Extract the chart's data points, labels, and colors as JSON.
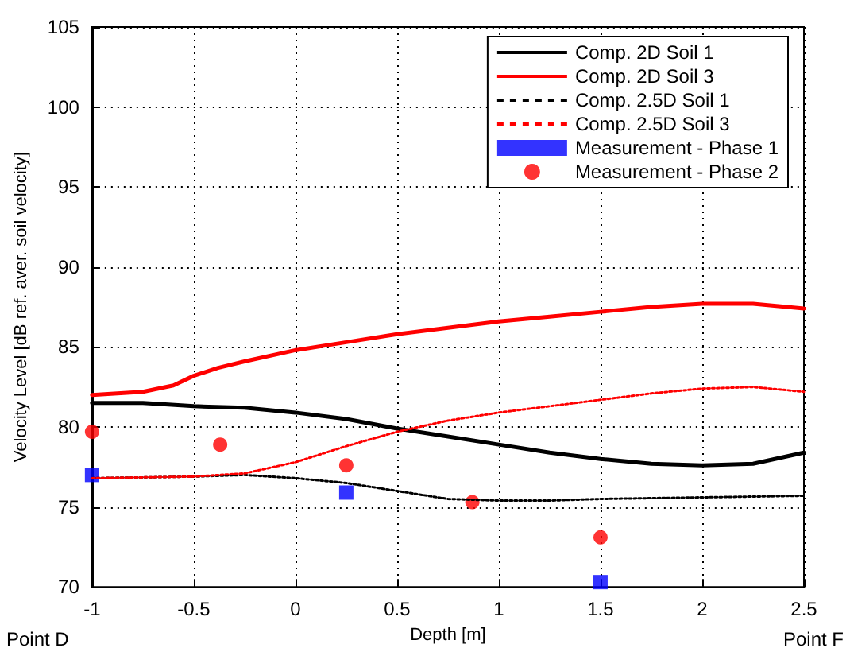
{
  "chart_data": {
    "type": "line",
    "xlabel": "Depth [m]",
    "ylabel": "Velocity Level [dB ref. aver. soil velocity]",
    "annotations": [
      "Point D",
      "Point F"
    ],
    "xlim": [
      -1,
      2.5
    ],
    "xticks": [
      -1,
      -0.5,
      0,
      0.5,
      1,
      1.5,
      2,
      2.5
    ],
    "ylim": [
      70,
      105
    ],
    "yticks": [
      70,
      75,
      80,
      85,
      90,
      95,
      100,
      105
    ],
    "grid": true,
    "legend": "top right",
    "series": [
      {
        "name": "Comp. 2D Soil 1",
        "color": "#000000",
        "line_style": "solid",
        "marker": "none",
        "x": [
          -1,
          -0.75,
          -0.5,
          -0.25,
          0,
          0.25,
          0.5,
          0.75,
          1,
          1.25,
          1.5,
          1.75,
          2,
          2.25,
          2.5
        ],
        "values": [
          81.5,
          81.5,
          81.3,
          81.2,
          80.9,
          80.5,
          79.9,
          79.4,
          78.9,
          78.4,
          78.0,
          77.7,
          77.6,
          77.7,
          78.4
        ]
      },
      {
        "name": "Comp. 2D Soil 3",
        "color": "#ff0000",
        "line_style": "solid",
        "marker": "none",
        "x": [
          -1,
          -0.75,
          -0.6,
          -0.5,
          -0.38,
          -0.25,
          0,
          0.25,
          0.5,
          0.75,
          1,
          1.25,
          1.5,
          1.75,
          2,
          2.25,
          2.5
        ],
        "values": [
          82.0,
          82.2,
          82.6,
          83.2,
          83.7,
          84.1,
          84.8,
          85.3,
          85.8,
          86.2,
          86.6,
          86.9,
          87.2,
          87.5,
          87.7,
          87.7,
          87.4
        ]
      },
      {
        "name": "Comp. 2.5D Soil 1",
        "color": "#000000",
        "line_style": "dotted",
        "marker": "none",
        "x": [
          -1,
          -0.5,
          -0.25,
          0,
          0.25,
          0.5,
          0.75,
          1,
          1.25,
          1.5,
          2,
          2.5
        ],
        "values": [
          76.8,
          76.9,
          77.0,
          76.8,
          76.5,
          76.0,
          75.5,
          75.4,
          75.4,
          75.5,
          75.6,
          75.7
        ]
      },
      {
        "name": "Comp. 2.5D Soil 3",
        "color": "#ff0000",
        "line_style": "dotted",
        "marker": "none",
        "x": [
          -1,
          -0.5,
          -0.25,
          0,
          0.25,
          0.5,
          0.75,
          1,
          1.25,
          1.5,
          1.75,
          2,
          2.25,
          2.5
        ],
        "values": [
          76.8,
          76.9,
          77.1,
          77.8,
          78.8,
          79.7,
          80.4,
          80.9,
          81.3,
          81.7,
          82.1,
          82.4,
          82.5,
          82.2
        ]
      },
      {
        "name": "Measurement - Phase 1",
        "type": "scatter",
        "color": "#0000ff",
        "marker": "square",
        "x": [
          -1,
          0.25,
          1.5
        ],
        "values": [
          77.0,
          75.9,
          70.3
        ]
      },
      {
        "name": "Measurement - Phase 2",
        "type": "scatter",
        "color": "#ff0000",
        "marker": "circle",
        "x": [
          -1,
          -0.37,
          0.25,
          0.87,
          1.5
        ],
        "values": [
          79.7,
          78.9,
          77.6,
          75.3,
          73.1
        ]
      }
    ]
  }
}
